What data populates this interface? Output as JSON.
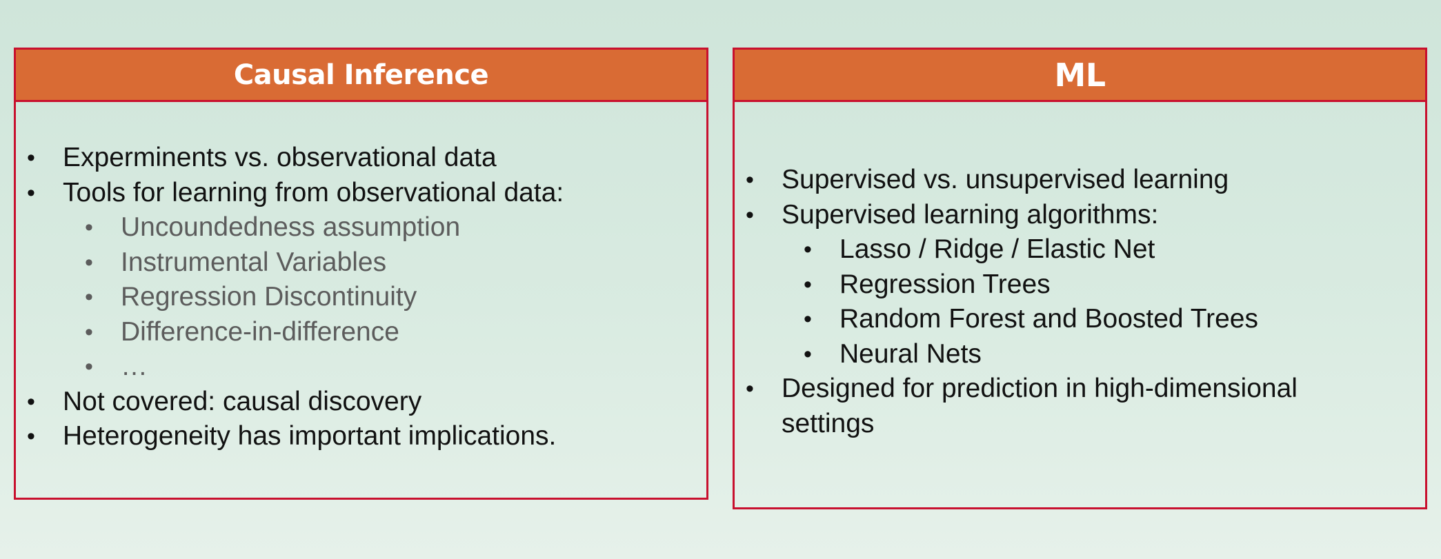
{
  "left_panel": {
    "title": "Causal Inference",
    "items": [
      {
        "text": "Experminents vs. observational data",
        "level": 1
      },
      {
        "text": "Tools for learning from observational data:",
        "level": 1
      },
      {
        "text": "Uncoundedness assumption",
        "level": 2
      },
      {
        "text": "Instrumental Variables",
        "level": 2
      },
      {
        "text": "Regression Discontinuity",
        "level": 2
      },
      {
        "text": "Difference-in-difference",
        "level": 2
      },
      {
        "text": "…",
        "level": 2
      },
      {
        "text": "Not covered: causal discovery",
        "level": 1
      },
      {
        "text": "Heterogeneity has important implications.",
        "level": 1
      }
    ]
  },
  "right_panel": {
    "title": "ML",
    "items": [
      {
        "text": "Supervised vs. unsupervised learning",
        "level": 1
      },
      {
        "text": "Supervised learning algorithms:",
        "level": 1
      },
      {
        "text": "Lasso / Ridge / Elastic Net",
        "level": 2
      },
      {
        "text": "Regression Trees",
        "level": 2
      },
      {
        "text": "Random Forest and Boosted Trees",
        "level": 2
      },
      {
        "text": "Neural Nets",
        "level": 2
      },
      {
        "text": "Designed for prediction in high-dimensional settings",
        "level": 1
      }
    ]
  },
  "bullet_glyph": "•",
  "colors": {
    "header_fill": "#d96b34",
    "border": "#c8102e",
    "muted_text": "#5c5c5c"
  }
}
